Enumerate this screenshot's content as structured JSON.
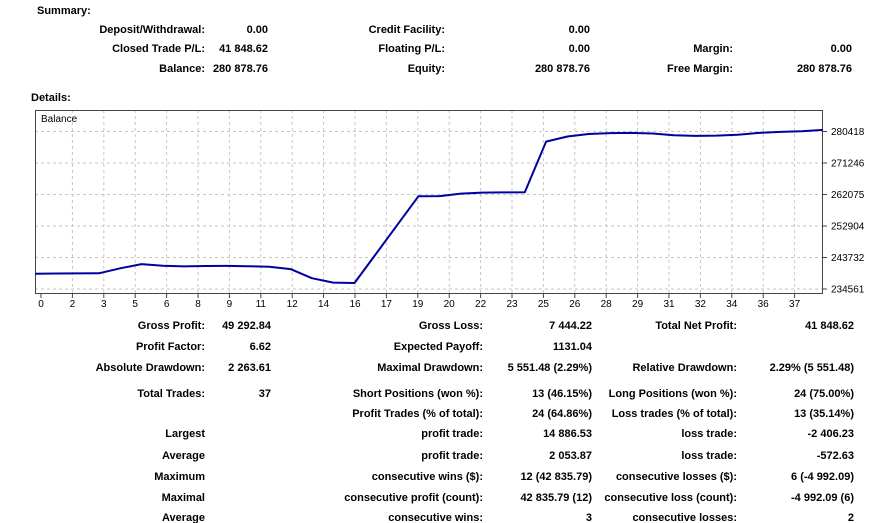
{
  "summary": {
    "heading": "Summary:",
    "rows": [
      [
        {
          "label": "Deposit/Withdrawal:",
          "value": "0.00"
        },
        {
          "label": "Credit Facility:",
          "value": "0.00"
        },
        null
      ],
      [
        {
          "label": "Closed Trade P/L:",
          "value": "41 848.62"
        },
        {
          "label": "Floating P/L:",
          "value": "0.00"
        },
        {
          "label": "Margin:",
          "value": "0.00"
        }
      ],
      [
        {
          "label": "Balance:",
          "value": "280 878.76"
        },
        {
          "label": "Equity:",
          "value": "280 878.76"
        },
        {
          "label": "Free Margin:",
          "value": "280 878.76"
        }
      ]
    ]
  },
  "details": {
    "heading": "Details:",
    "rows": [
      [
        {
          "label": "Gross Profit:",
          "value": "49 292.84"
        },
        {
          "label": "Gross Loss:",
          "value": "7 444.22"
        },
        {
          "label": "Total Net Profit:",
          "value": "41 848.62"
        }
      ],
      [
        {
          "label": "Profit Factor:",
          "value": "6.62"
        },
        {
          "label": "Expected Payoff:",
          "value": "1131.04"
        },
        null
      ],
      [
        {
          "label": "Absolute Drawdown:",
          "value": "2 263.61"
        },
        {
          "label": "Maximal Drawdown:",
          "value": "5 551.48 (2.29%)"
        },
        {
          "label": "Relative Drawdown:",
          "value": "2.29% (5 551.48)"
        }
      ],
      [
        {
          "label": "Total Trades:",
          "value": "37"
        },
        {
          "label": "Short Positions (won %):",
          "value": "13 (46.15%)"
        },
        {
          "label": "Long Positions (won %):",
          "value": "24 (75.00%)"
        }
      ],
      [
        null,
        {
          "label": "Profit Trades (% of total):",
          "value": "24 (64.86%)"
        },
        {
          "label": "Loss trades (% of total):",
          "value": "13 (35.14%)"
        }
      ],
      [
        {
          "label": "Largest",
          "value": ""
        },
        {
          "label": "profit trade:",
          "value": "14 886.53"
        },
        {
          "label": "loss trade:",
          "value": "-2 406.23"
        }
      ],
      [
        {
          "label": "Average",
          "value": ""
        },
        {
          "label": "profit trade:",
          "value": "2 053.87"
        },
        {
          "label": "loss trade:",
          "value": "-572.63"
        }
      ],
      [
        {
          "label": "Maximum",
          "value": ""
        },
        {
          "label": "consecutive wins ($):",
          "value": "12 (42 835.79)"
        },
        {
          "label": "consecutive losses ($):",
          "value": "6 (-4 992.09)"
        }
      ],
      [
        {
          "label": "Maximal",
          "value": ""
        },
        {
          "label": "consecutive profit (count):",
          "value": "42 835.79 (12)"
        },
        {
          "label": "consecutive loss (count):",
          "value": "-4 992.09 (6)"
        }
      ],
      [
        {
          "label": "Average",
          "value": ""
        },
        {
          "label": "consecutive wins:",
          "value": "3"
        },
        {
          "label": "consecutive losses:",
          "value": "2"
        }
      ]
    ]
  },
  "chart_data": {
    "type": "line",
    "title": "Balance",
    "xlabel": "",
    "ylabel": "",
    "grid": true,
    "legend_position": "none",
    "xlim": [
      0,
      37
    ],
    "ylim": [
      233105,
      286678
    ],
    "x_tick_labels": [
      "0",
      "2",
      "3",
      "5",
      "6",
      "8",
      "9",
      "11",
      "12",
      "14",
      "16",
      "17",
      "19",
      "20",
      "22",
      "23",
      "25",
      "26",
      "28",
      "29",
      "31",
      "32",
      "34",
      "36",
      "37"
    ],
    "y_tick_labels": [
      "280418",
      "271246",
      "262075",
      "252904",
      "243732",
      "234561"
    ],
    "line_color": "#0000a0",
    "grid_color": "#c6c6c6",
    "series": [
      {
        "name": "Balance",
        "x": [
          0,
          1,
          2,
          3,
          4,
          5,
          6,
          7,
          8,
          9,
          10,
          11,
          12,
          13,
          14,
          15,
          16,
          17,
          18,
          19,
          20,
          21,
          22,
          23,
          24,
          25,
          26,
          27,
          28,
          29,
          30,
          31,
          32,
          33,
          34,
          35,
          36,
          37
        ],
        "values": [
          239030,
          239060,
          239100,
          239140,
          240600,
          241800,
          241350,
          241150,
          241250,
          241300,
          241200,
          241050,
          240350,
          237700,
          236420,
          236300,
          244720,
          253140,
          261560,
          261620,
          262340,
          262620,
          262680,
          262720,
          277470,
          278950,
          279700,
          279950,
          280000,
          279850,
          279300,
          279150,
          279230,
          279500,
          280000,
          280300,
          280520,
          280878.76
        ]
      }
    ]
  }
}
